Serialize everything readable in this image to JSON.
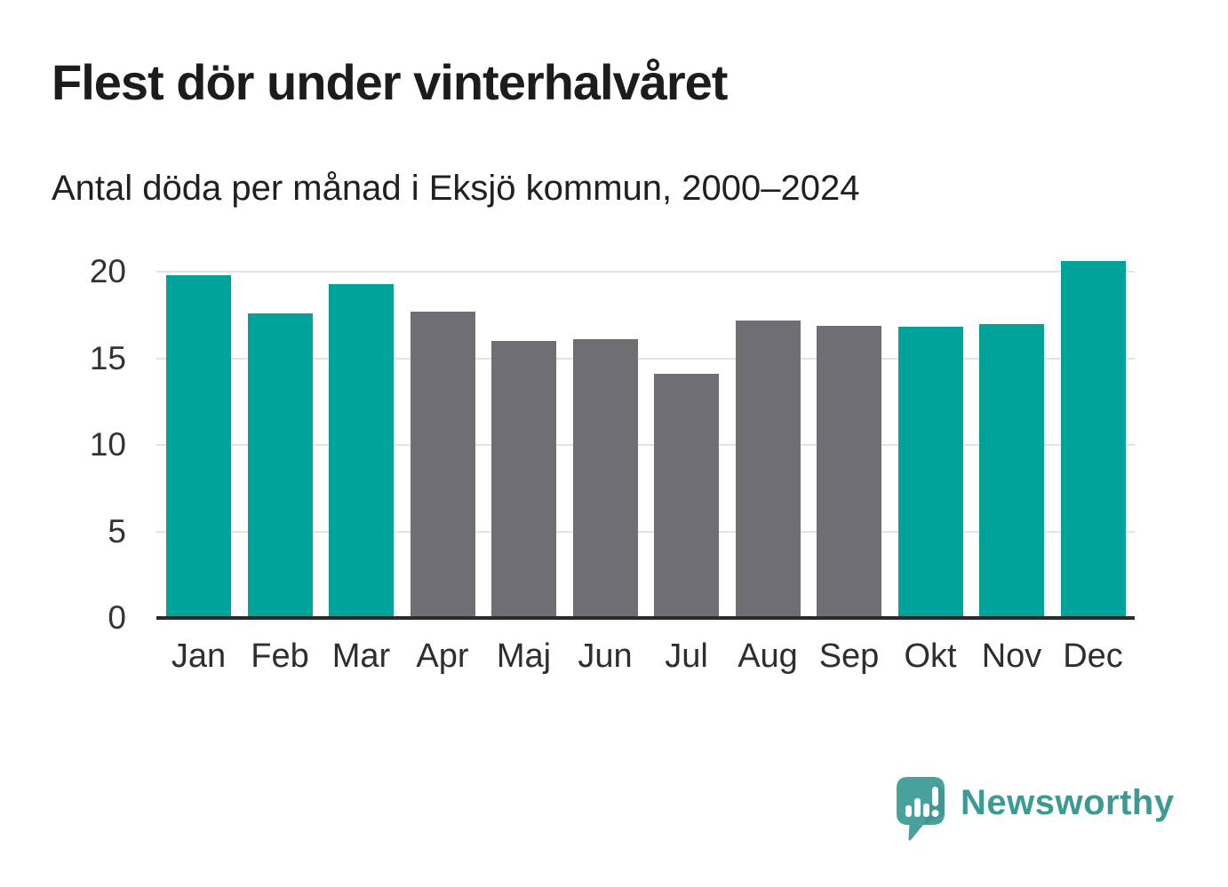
{
  "header": {
    "title": "Flest dör under vinterhalvåret",
    "subtitle": "Antal döda per månad i Eksjö kommun, 2000–2024"
  },
  "chart_data": {
    "type": "bar",
    "title": "Flest dör under vinterhalvåret",
    "subtitle": "Antal döda per månad i Eksjö kommun, 2000–2024",
    "categories": [
      "Jan",
      "Feb",
      "Mar",
      "Apr",
      "Maj",
      "Jun",
      "Jul",
      "Aug",
      "Sep",
      "Okt",
      "Nov",
      "Dec"
    ],
    "values": [
      19.8,
      17.6,
      19.3,
      17.7,
      16.0,
      16.1,
      14.1,
      17.2,
      16.9,
      16.8,
      17.0,
      20.6
    ],
    "highlighted_winter_months": [
      true,
      true,
      true,
      false,
      false,
      false,
      false,
      false,
      false,
      true,
      true,
      true
    ],
    "xlabel": "",
    "ylabel": "",
    "ylim": [
      0,
      20
    ],
    "yticks": [
      0,
      5,
      10,
      15,
      20
    ],
    "grid": "horizontal",
    "legend": "none",
    "colors": {
      "winter_bar": "#00a39a",
      "summer_bar": "#6e6e73",
      "gridline": "#e3e3e3",
      "axis_line": "#2b2b2b",
      "tick_text": "#333333"
    }
  },
  "branding": {
    "name": "Newsworthy",
    "text_color": "#3b9b94",
    "icon_color": "#48a19b",
    "icon": "newsworthy-speech-bubble-barchart-icon"
  }
}
